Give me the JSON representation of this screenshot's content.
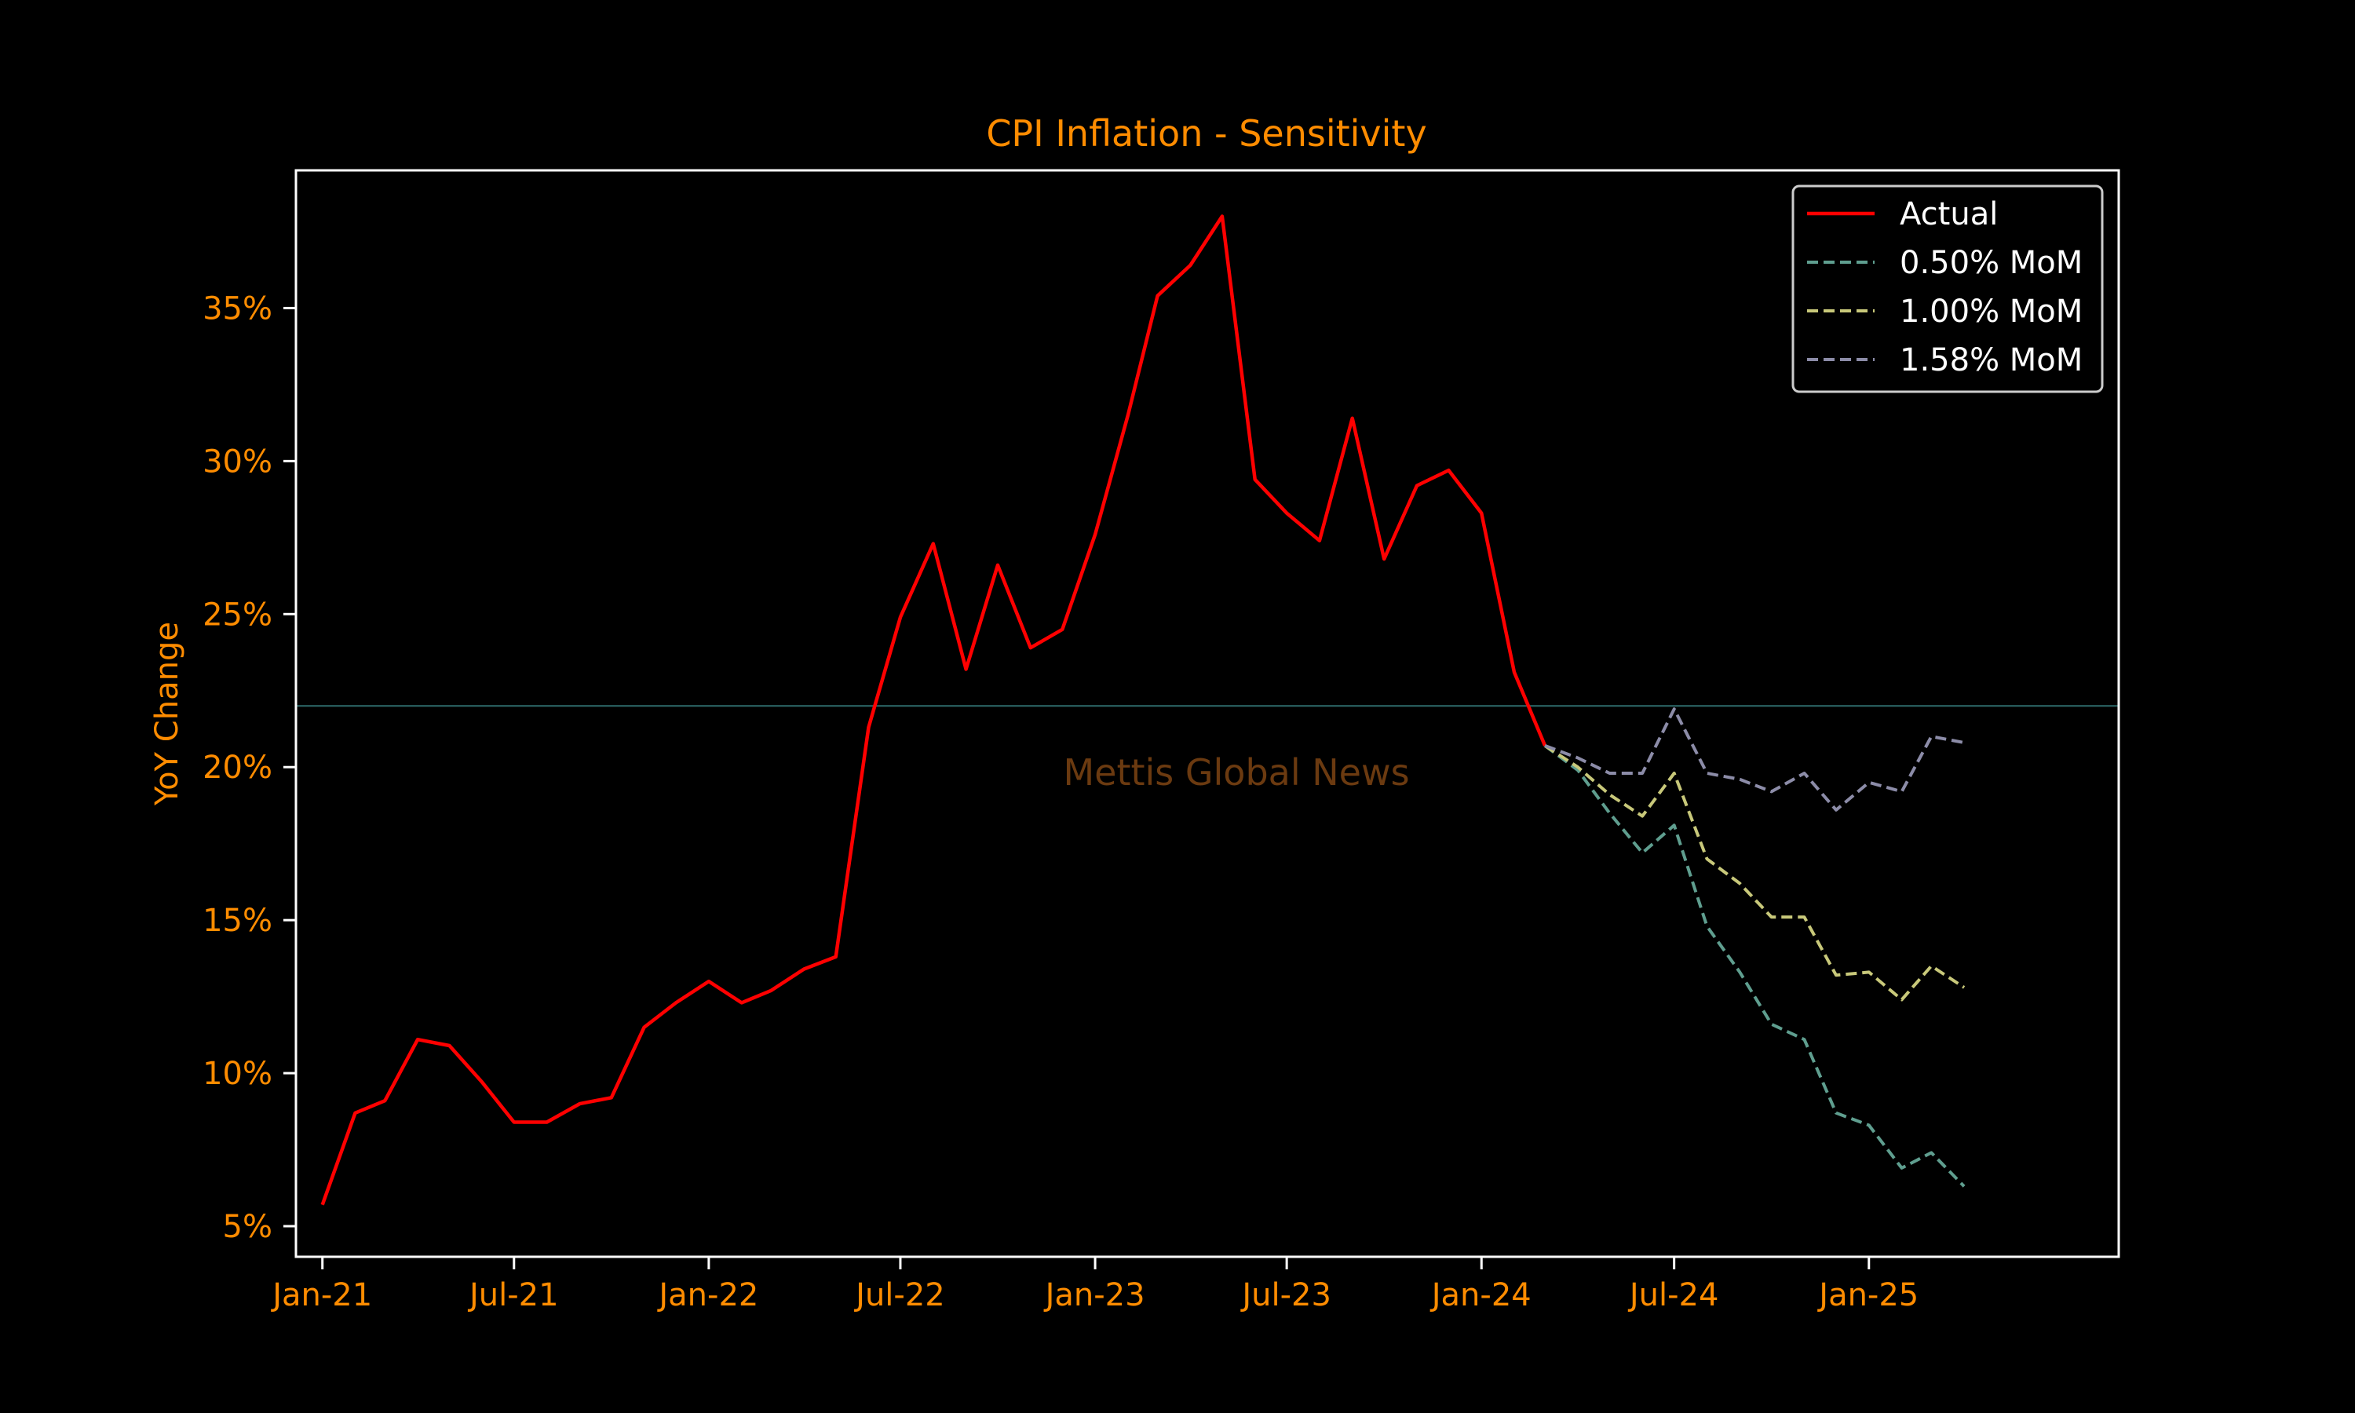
{
  "chart_data": {
    "type": "line",
    "title": "CPI Inflation - Sensitivity",
    "xlabel": "",
    "ylabel": "YoY Change",
    "watermark": "Mettis Global News",
    "x_range": [
      "2020-12-07",
      "2025-08-25"
    ],
    "ylim": [
      4.0,
      39.5
    ],
    "yticks": [
      5,
      10,
      15,
      20,
      25,
      30,
      35
    ],
    "ytick_labels": [
      "5%",
      "10%",
      "15%",
      "20%",
      "25%",
      "30%",
      "35%"
    ],
    "xticks": [
      "2021-01-01",
      "2021-07-01",
      "2022-01-01",
      "2022-07-01",
      "2023-01-01",
      "2023-07-01",
      "2024-01-01",
      "2024-07-01",
      "2025-01-01"
    ],
    "xtick_labels": [
      "Jan-21",
      "Jul-21",
      "Jan-22",
      "Jul-22",
      "Jan-23",
      "Jul-23",
      "Jan-24",
      "Jul-24",
      "Jan-25"
    ],
    "reference_line": {
      "y": 22.0,
      "color": "#2e6b6b"
    },
    "legend": {
      "position": "top-right",
      "entries": [
        "Actual",
        "0.50% MoM",
        "1.00% MoM",
        "1.58% MoM"
      ]
    },
    "colors": {
      "background": "#000000",
      "axes": "#ffffff",
      "text": "#ff8c00",
      "legend_text": "#ffffff",
      "watermark": "#6b3a10"
    },
    "series": [
      {
        "name": "Actual",
        "color": "#ff0000",
        "style": "solid",
        "x": [
          "2021-01-01",
          "2021-02-01",
          "2021-03-01",
          "2021-04-01",
          "2021-05-01",
          "2021-06-01",
          "2021-07-01",
          "2021-08-01",
          "2021-09-01",
          "2021-10-01",
          "2021-11-01",
          "2021-12-01",
          "2022-01-01",
          "2022-02-01",
          "2022-03-01",
          "2022-04-01",
          "2022-05-01",
          "2022-06-01",
          "2022-07-01",
          "2022-08-01",
          "2022-09-01",
          "2022-10-01",
          "2022-11-01",
          "2022-12-01",
          "2023-01-01",
          "2023-02-01",
          "2023-03-01",
          "2023-04-01",
          "2023-05-01",
          "2023-06-01",
          "2023-07-01",
          "2023-08-01",
          "2023-09-01",
          "2023-10-01",
          "2023-11-01",
          "2023-12-01",
          "2024-01-01",
          "2024-02-01",
          "2024-03-01"
        ],
        "y": [
          5.7,
          8.7,
          9.1,
          11.1,
          10.9,
          9.7,
          8.4,
          8.4,
          9.0,
          9.2,
          11.5,
          12.3,
          13.0,
          12.3,
          12.7,
          13.4,
          13.8,
          21.3,
          24.9,
          27.3,
          23.2,
          26.6,
          23.9,
          24.5,
          27.6,
          31.5,
          35.4,
          36.4,
          38.0,
          29.4,
          28.3,
          27.4,
          31.4,
          26.8,
          29.2,
          29.7,
          28.3,
          23.1,
          20.7
        ]
      },
      {
        "name": "0.50% MoM",
        "color": "#5f9e8f",
        "style": "dashed",
        "x": [
          "2024-03-01",
          "2024-04-01",
          "2024-05-01",
          "2024-06-01",
          "2024-07-01",
          "2024-08-01",
          "2024-09-01",
          "2024-10-01",
          "2024-11-01",
          "2024-12-01",
          "2025-01-01",
          "2025-02-01",
          "2025-03-01",
          "2025-04-01",
          "2025-05-01"
        ],
        "y": [
          20.7,
          19.9,
          18.5,
          17.2,
          18.1,
          14.8,
          13.3,
          11.6,
          11.1,
          8.7,
          8.3,
          6.9,
          7.4,
          6.3,
          null
        ]
      },
      {
        "name": "1.00% MoM",
        "color": "#c8c87a",
        "style": "dashed",
        "x": [
          "2024-03-01",
          "2024-04-01",
          "2024-05-01",
          "2024-06-01",
          "2024-07-01",
          "2024-08-01",
          "2024-09-01",
          "2024-10-01",
          "2024-11-01",
          "2024-12-01",
          "2025-01-01",
          "2025-02-01",
          "2025-03-01",
          "2025-04-01",
          "2025-05-01"
        ],
        "y": [
          20.7,
          20.0,
          19.1,
          18.4,
          19.8,
          17.0,
          16.2,
          15.1,
          15.1,
          13.2,
          13.3,
          12.4,
          13.5,
          12.8,
          null
        ]
      },
      {
        "name": "1.58% MoM",
        "color": "#8c8ca8",
        "style": "dashed",
        "x": [
          "2024-03-01",
          "2024-04-01",
          "2024-05-01",
          "2024-06-01",
          "2024-07-01",
          "2024-08-01",
          "2024-09-01",
          "2024-10-01",
          "2024-11-01",
          "2024-12-01",
          "2025-01-01",
          "2025-02-01",
          "2025-03-01",
          "2025-04-01",
          "2025-05-01"
        ],
        "y": [
          20.7,
          20.3,
          19.8,
          19.8,
          21.9,
          19.8,
          19.6,
          19.2,
          19.8,
          18.6,
          19.5,
          19.2,
          21.0,
          20.8,
          null
        ]
      }
    ]
  }
}
